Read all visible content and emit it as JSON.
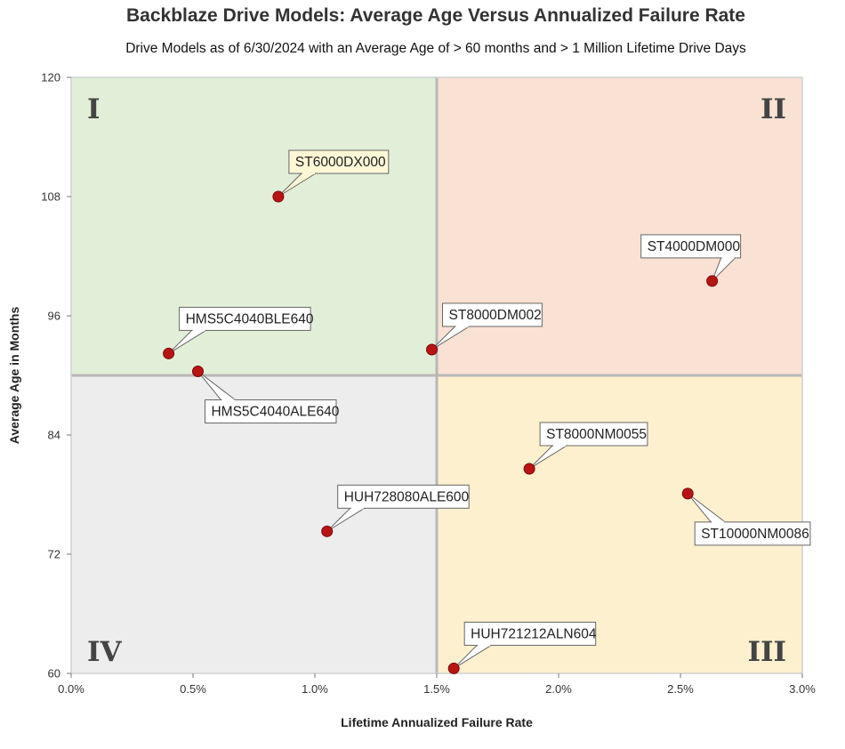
{
  "chart_data": {
    "type": "scatter",
    "title": "Backblaze Drive Models: Average Age Versus Annualized Failure Rate",
    "subtitle": "Drive Models as of 6/30/2024 with an Average Age of > 60 months and > 1 Million Lifetime Drive Days",
    "xlabel": "Lifetime Annualized Failure Rate",
    "ylabel": "Average Age in Months",
    "xlim": [
      0,
      3.0
    ],
    "ylim": [
      60,
      120
    ],
    "x_ticks": [
      "0.0%",
      "0.5%",
      "1.0%",
      "1.5%",
      "2.0%",
      "2.5%",
      "3.0%"
    ],
    "y_ticks": [
      "60",
      "72",
      "84",
      "96",
      "108",
      "120"
    ],
    "x_tick_values": [
      0,
      0.5,
      1.0,
      1.5,
      2.0,
      2.5,
      3.0
    ],
    "y_tick_values": [
      60,
      72,
      84,
      96,
      108,
      120
    ],
    "grid": false,
    "quadrant_dividers": {
      "x": 1.5,
      "y": 90
    },
    "quadrants": [
      {
        "label": "I",
        "x_range": [
          0,
          1.5
        ],
        "y_range": [
          90,
          120
        ],
        "color": "#e2efd8"
      },
      {
        "label": "II",
        "x_range": [
          1.5,
          3.0
        ],
        "y_range": [
          90,
          120
        ],
        "color": "#f9e1d4"
      },
      {
        "label": "III",
        "x_range": [
          1.5,
          3.0
        ],
        "y_range": [
          60,
          90
        ],
        "color": "#fdf0cf"
      },
      {
        "label": "IV",
        "x_range": [
          0,
          1.5
        ],
        "y_range": [
          60,
          90
        ],
        "color": "#ededed"
      }
    ],
    "point_color": "#b81414",
    "points": [
      {
        "label": "ST6000DX000",
        "x": 0.85,
        "y": 108.0,
        "callout": "above-right",
        "highlight": true
      },
      {
        "label": "ST4000DM000",
        "x": 2.63,
        "y": 99.5,
        "callout": "above-left"
      },
      {
        "label": "HMS5C4040BLE640",
        "x": 0.4,
        "y": 92.2,
        "callout": "above-right"
      },
      {
        "label": "ST8000DM002",
        "x": 1.48,
        "y": 92.6,
        "callout": "above-right"
      },
      {
        "label": "HMS5C4040ALE640",
        "x": 0.52,
        "y": 90.4,
        "callout": "below-right"
      },
      {
        "label": "ST8000NM0055",
        "x": 1.88,
        "y": 80.6,
        "callout": "above-right"
      },
      {
        "label": "ST10000NM0086",
        "x": 2.53,
        "y": 78.1,
        "callout": "below-right"
      },
      {
        "label": "HUH728080ALE600",
        "x": 1.05,
        "y": 74.3,
        "callout": "above-right"
      },
      {
        "label": "HUH721212ALN604",
        "x": 1.57,
        "y": 60.5,
        "callout": "above-right"
      }
    ]
  }
}
